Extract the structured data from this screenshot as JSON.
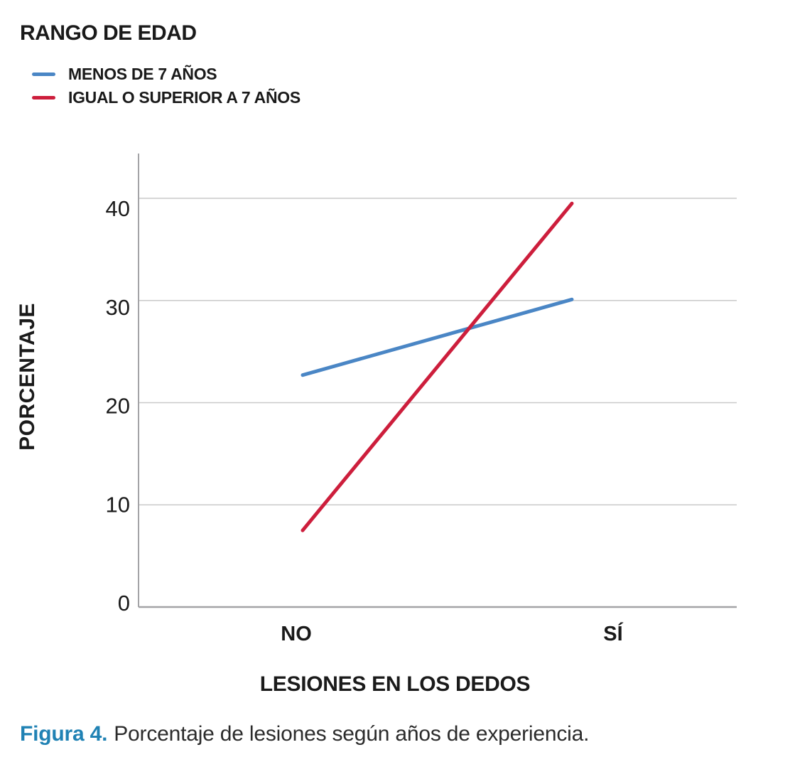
{
  "colors": {
    "series_blue": "#4a86c5",
    "series_red": "#cd1e3c",
    "gridline": "#c9c9c9",
    "axis": "#a3a3a6",
    "text": "#1a1a1a",
    "caption_accent": "#2082b4",
    "caption_text": "#2b2b2b"
  },
  "chart_data": {
    "type": "line",
    "title": "RANGO DE EDAD",
    "categories": [
      "NO",
      "SÍ"
    ],
    "series": [
      {
        "name": "MENOS DE 7 AÑOS",
        "color": "#4a86c5",
        "values": [
          22.7,
          30.1
        ]
      },
      {
        "name": "IGUAL O SUPERIOR A 7 AÑOS",
        "color": "#cd1e3c",
        "values": [
          7.5,
          39.5
        ]
      }
    ],
    "xlabel": "LESIONES EN LOS DEDOS",
    "ylabel": "PORCENTAJE",
    "ylim": [
      0,
      44
    ],
    "yticks": [
      0,
      10,
      20,
      30,
      40
    ],
    "grid": true,
    "legend_position": "top-left"
  },
  "caption": {
    "label": "Figura 4.",
    "text": "Porcentaje de lesiones según años de experiencia."
  }
}
